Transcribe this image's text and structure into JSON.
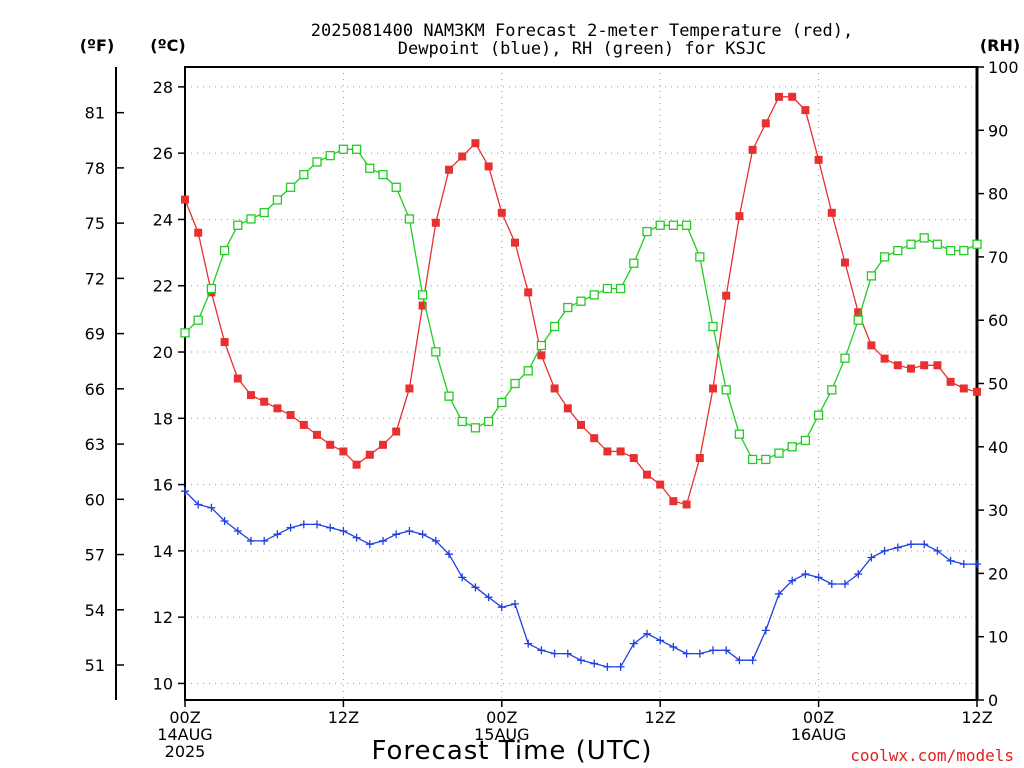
{
  "chart_data": {
    "type": "line",
    "title": "2025081400 NAM3KM Forecast 2-meter Temperature (red), Dewpoint (blue), RH (green) for KSJC",
    "title_lines": [
      "2025081400 NAM3KM Forecast 2-meter Temperature (red),",
      "Dewpoint (blue), RH (green) for KSJC"
    ],
    "xlabel": "Forecast Time (UTC)",
    "credit": "coolwx.com/models",
    "units": {
      "fahrenheit": "(ºF)",
      "celsius": "(ºC)",
      "rh": "(RH)"
    },
    "x_range_hours": [
      0,
      60
    ],
    "x_ticks": [
      {
        "hour": 0,
        "lines": [
          "00Z",
          "14AUG",
          "2025"
        ]
      },
      {
        "hour": 12,
        "lines": [
          "12Z"
        ]
      },
      {
        "hour": 24,
        "lines": [
          "00Z",
          "15AUG"
        ]
      },
      {
        "hour": 36,
        "lines": [
          "12Z"
        ]
      },
      {
        "hour": 48,
        "lines": [
          "00Z",
          "16AUG"
        ]
      },
      {
        "hour": 60,
        "lines": [
          "12Z"
        ]
      }
    ],
    "y_celsius": {
      "range": [
        9.5,
        28.6
      ],
      "ticks": [
        10,
        12,
        14,
        16,
        18,
        20,
        22,
        24,
        26,
        28
      ]
    },
    "y_fahrenheit": {
      "ticks": [
        51,
        54,
        57,
        60,
        63,
        66,
        69,
        72,
        75,
        78,
        81
      ]
    },
    "y_rh": {
      "range": [
        0,
        100
      ],
      "ticks": [
        0,
        10,
        20,
        30,
        40,
        50,
        60,
        70,
        80,
        90,
        100
      ]
    },
    "grid": true,
    "series": [
      {
        "name": "Temperature",
        "axis": "celsius",
        "color": "#e83030",
        "marker": "filled-square",
        "values": [
          24.6,
          23.6,
          21.8,
          20.3,
          19.2,
          18.7,
          18.5,
          18.3,
          18.1,
          17.8,
          17.5,
          17.2,
          17.0,
          16.6,
          16.9,
          17.2,
          17.6,
          18.9,
          21.4,
          23.9,
          25.5,
          25.9,
          26.3,
          25.6,
          24.2,
          23.3,
          21.8,
          19.9,
          18.9,
          18.3,
          17.8,
          17.4,
          17.0,
          17.0,
          16.8,
          16.3,
          16.0,
          15.5,
          15.4,
          16.8,
          18.9,
          21.7,
          24.1,
          26.1,
          26.9,
          27.7,
          27.7,
          27.3,
          25.8,
          24.2,
          22.7,
          21.2,
          20.2,
          19.8,
          19.6,
          19.5,
          19.6,
          19.6,
          19.1,
          18.9,
          18.8
        ]
      },
      {
        "name": "Dewpoint",
        "axis": "celsius",
        "color": "#2040e0",
        "marker": "plus",
        "values": [
          15.8,
          15.4,
          15.3,
          14.9,
          14.6,
          14.3,
          14.3,
          14.5,
          14.7,
          14.8,
          14.8,
          14.7,
          14.6,
          14.4,
          14.2,
          14.3,
          14.5,
          14.6,
          14.5,
          14.3,
          13.9,
          13.2,
          12.9,
          12.6,
          12.3,
          12.4,
          11.2,
          11.0,
          10.9,
          10.9,
          10.7,
          10.6,
          10.5,
          10.5,
          11.2,
          11.5,
          11.3,
          11.1,
          10.9,
          10.9,
          11.0,
          11.0,
          10.7,
          10.7,
          11.6,
          12.7,
          13.1,
          13.3,
          13.2,
          13.0,
          13.0,
          13.3,
          13.8,
          14.0,
          14.1,
          14.2,
          14.2,
          14.0,
          13.7,
          13.6,
          13.6
        ]
      },
      {
        "name": "RH",
        "axis": "rh",
        "color": "#22cc22",
        "marker": "open-square",
        "values": [
          58,
          60,
          65,
          71,
          75,
          76,
          77,
          79,
          81,
          83,
          85,
          86,
          87,
          87,
          84,
          83,
          81,
          76,
          64,
          55,
          48,
          44,
          43,
          44,
          47,
          50,
          52,
          56,
          59,
          62,
          63,
          64,
          65,
          65,
          69,
          74,
          75,
          75,
          75,
          70,
          59,
          49,
          42,
          38,
          38,
          39,
          40,
          41,
          45,
          49,
          54,
          60,
          67,
          70,
          71,
          72,
          73,
          72,
          71,
          71,
          72
        ]
      }
    ]
  }
}
